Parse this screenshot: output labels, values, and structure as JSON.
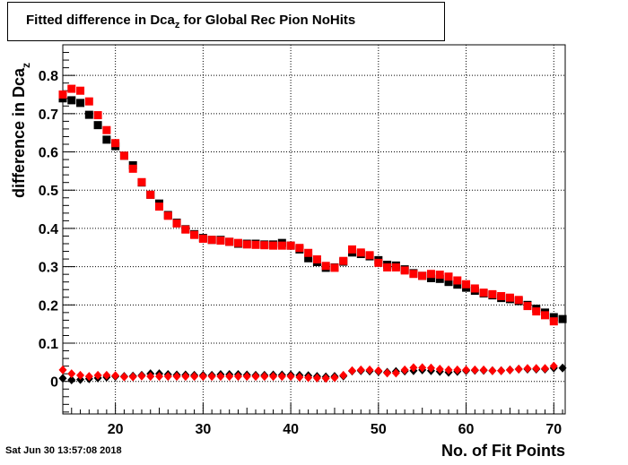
{
  "title": {
    "prefix": "Fitted difference in Dca",
    "subscript": "z",
    "suffix": " for Global Rec Pion NoHits"
  },
  "timestamp": "Sat Jun 30 13:57:08 2018",
  "chart_data": {
    "type": "scatter",
    "xlabel": "No. of Fit Points",
    "ylabel": "difference in Dca",
    "ylabel_subscript": "z",
    "xlim": [
      14,
      71.3
    ],
    "ylim": [
      -0.085,
      0.88
    ],
    "xticks": [
      20,
      30,
      40,
      50,
      60,
      70
    ],
    "yticks": [
      0,
      0.1,
      0.2,
      0.3,
      0.4,
      0.5,
      0.6,
      0.7,
      0.8
    ],
    "ytick_labels": [
      "0",
      "0.1",
      "0.2",
      "0.3",
      "0.4",
      "0.5",
      "0.6",
      "0.7",
      "0.8"
    ],
    "xtick_labels": [
      "20",
      "30",
      "40",
      "50",
      "60",
      "70"
    ],
    "grid": true,
    "colors": {
      "black": "#000000",
      "red": "#ff0000"
    },
    "series": [
      {
        "marker": "square",
        "color": "#000000",
        "x": [
          14,
          15,
          16,
          17,
          18,
          19,
          20,
          21,
          22,
          23,
          24,
          25,
          26,
          27,
          28,
          29,
          30,
          31,
          32,
          33,
          34,
          35,
          36,
          37,
          38,
          39,
          40,
          41,
          42,
          43,
          44,
          45,
          46,
          47,
          48,
          49,
          50,
          51,
          52,
          53,
          54,
          55,
          56,
          57,
          58,
          59,
          60,
          61,
          62,
          63,
          64,
          65,
          66,
          67,
          68,
          69,
          70,
          71
        ],
        "y": [
          0.74,
          0.735,
          0.728,
          0.697,
          0.67,
          0.632,
          0.615,
          0.59,
          0.565,
          0.52,
          0.488,
          0.465,
          0.435,
          0.415,
          0.398,
          0.385,
          0.375,
          0.37,
          0.37,
          0.365,
          0.36,
          0.36,
          0.36,
          0.358,
          0.358,
          0.362,
          0.355,
          0.345,
          0.322,
          0.312,
          0.297,
          0.298,
          0.313,
          0.337,
          0.333,
          0.327,
          0.317,
          0.305,
          0.303,
          0.293,
          0.283,
          0.276,
          0.27,
          0.268,
          0.26,
          0.253,
          0.245,
          0.237,
          0.23,
          0.225,
          0.218,
          0.215,
          0.21,
          0.2,
          0.19,
          0.18,
          0.168,
          0.163
        ]
      },
      {
        "marker": "square",
        "color": "#ff0000",
        "x": [
          14,
          15,
          16,
          17,
          18,
          19,
          20,
          21,
          22,
          23,
          24,
          25,
          26,
          27,
          28,
          29,
          30,
          31,
          32,
          33,
          34,
          35,
          36,
          37,
          38,
          39,
          40,
          41,
          42,
          43,
          44,
          45,
          46,
          47,
          48,
          49,
          50,
          51,
          52,
          53,
          54,
          55,
          56,
          57,
          58,
          59,
          60,
          61,
          62,
          63,
          64,
          65,
          66,
          67,
          68,
          69,
          70
        ],
        "y": [
          0.75,
          0.765,
          0.76,
          0.732,
          0.696,
          0.657,
          0.623,
          0.59,
          0.556,
          0.521,
          0.488,
          0.457,
          0.433,
          0.413,
          0.397,
          0.383,
          0.373,
          0.37,
          0.368,
          0.365,
          0.362,
          0.358,
          0.357,
          0.356,
          0.355,
          0.355,
          0.355,
          0.349,
          0.336,
          0.319,
          0.302,
          0.297,
          0.315,
          0.345,
          0.337,
          0.33,
          0.31,
          0.298,
          0.298,
          0.29,
          0.281,
          0.276,
          0.281,
          0.279,
          0.274,
          0.264,
          0.254,
          0.243,
          0.232,
          0.228,
          0.223,
          0.219,
          0.213,
          0.197,
          0.183,
          0.173,
          0.157
        ]
      },
      {
        "marker": "diamond",
        "color": "#000000",
        "x": [
          14,
          15,
          16,
          17,
          18,
          19,
          20,
          21,
          22,
          23,
          24,
          25,
          26,
          27,
          28,
          29,
          30,
          31,
          32,
          33,
          34,
          35,
          36,
          37,
          38,
          39,
          40,
          41,
          42,
          43,
          44,
          45,
          46,
          47,
          48,
          49,
          50,
          51,
          52,
          53,
          54,
          55,
          56,
          57,
          58,
          59,
          60,
          61,
          62,
          63,
          64,
          65,
          66,
          67,
          68,
          69,
          70,
          71
        ],
        "y": [
          0.008,
          0.004,
          0.005,
          0.007,
          0.009,
          0.011,
          0.013,
          0.013,
          0.014,
          0.016,
          0.02,
          0.02,
          0.018,
          0.017,
          0.017,
          0.016,
          0.016,
          0.016,
          0.018,
          0.018,
          0.018,
          0.017,
          0.016,
          0.016,
          0.017,
          0.017,
          0.017,
          0.016,
          0.015,
          0.013,
          0.012,
          0.013,
          0.014,
          0.027,
          0.028,
          0.027,
          0.026,
          0.024,
          0.026,
          0.027,
          0.028,
          0.03,
          0.028,
          0.026,
          0.024,
          0.026,
          0.028,
          0.029,
          0.029,
          0.028,
          0.028,
          0.03,
          0.032,
          0.032,
          0.032,
          0.032,
          0.035,
          0.035
        ]
      },
      {
        "marker": "diamond",
        "color": "#ff0000",
        "x": [
          14,
          15,
          16,
          17,
          18,
          19,
          20,
          21,
          22,
          23,
          24,
          25,
          26,
          27,
          28,
          29,
          30,
          31,
          32,
          33,
          34,
          35,
          36,
          37,
          38,
          39,
          40,
          41,
          42,
          43,
          44,
          45,
          46,
          47,
          48,
          49,
          50,
          51,
          52,
          53,
          54,
          55,
          56,
          57,
          58,
          59,
          60,
          61,
          62,
          63,
          64,
          65,
          66,
          67,
          68,
          69,
          70
        ],
        "y": [
          0.03,
          0.02,
          0.016,
          0.013,
          0.016,
          0.016,
          0.015,
          0.012,
          0.012,
          0.014,
          0.013,
          0.013,
          0.013,
          0.013,
          0.013,
          0.013,
          0.013,
          0.013,
          0.013,
          0.013,
          0.013,
          0.013,
          0.013,
          0.013,
          0.013,
          0.013,
          0.013,
          0.011,
          0.01,
          0.009,
          0.008,
          0.01,
          0.016,
          0.028,
          0.03,
          0.03,
          0.028,
          0.022,
          0.022,
          0.03,
          0.036,
          0.036,
          0.035,
          0.032,
          0.03,
          0.03,
          0.03,
          0.03,
          0.03,
          0.028,
          0.028,
          0.03,
          0.032,
          0.034,
          0.034,
          0.034,
          0.04
        ]
      }
    ]
  }
}
